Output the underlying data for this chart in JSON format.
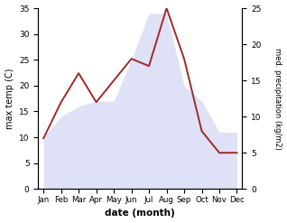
{
  "months": [
    "Jan",
    "Feb",
    "Mar",
    "Apr",
    "May",
    "Jun",
    "Jul",
    "Aug",
    "Sep",
    "Oct",
    "Nov",
    "Dec"
  ],
  "temp": [
    10,
    14,
    16,
    17,
    17,
    25,
    34,
    34,
    20,
    17,
    11,
    11
  ],
  "precip": [
    7,
    12,
    16,
    12,
    15,
    18,
    17,
    25,
    18,
    8,
    5,
    5
  ],
  "temp_color_fill": "#c5caf0",
  "precip_color": "#9e2a2a",
  "ylim_left": [
    0,
    35
  ],
  "ylim_right": [
    0,
    25
  ],
  "yticks_left": [
    0,
    5,
    10,
    15,
    20,
    25,
    30,
    35
  ],
  "yticks_right": [
    0,
    5,
    10,
    15,
    20,
    25
  ],
  "xlabel": "date (month)",
  "ylabel_left": "max temp (C)",
  "ylabel_right": "med. precipitation (kg/m2)",
  "background_color": "#ffffff",
  "fill_alpha": 0.55,
  "linewidth": 1.4
}
